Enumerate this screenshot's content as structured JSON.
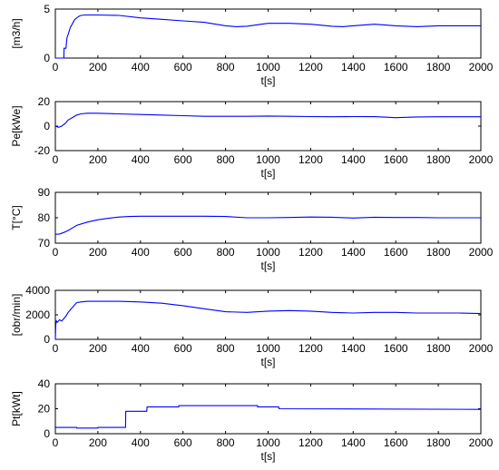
{
  "colors": {
    "series": "#0000ff",
    "axes": "#000000",
    "background": "#ffffff"
  },
  "chart_data": [
    {
      "type": "line",
      "xlabel": "t[s]",
      "ylabel": "[m3/h]",
      "xlim": [
        0,
        2000
      ],
      "ylim": [
        0,
        5
      ],
      "xticks": [
        0,
        200,
        400,
        600,
        800,
        1000,
        1200,
        1400,
        1600,
        1800,
        2000
      ],
      "yticks": [
        0,
        5
      ],
      "x": [
        0,
        40,
        41,
        50,
        55,
        60,
        70,
        80,
        90,
        100,
        110,
        120,
        140,
        160,
        200,
        300,
        400,
        500,
        600,
        700,
        800,
        850,
        900,
        1000,
        1100,
        1200,
        1300,
        1350,
        1400,
        1500,
        1600,
        1700,
        1800,
        1900,
        2000
      ],
      "y": [
        0,
        0,
        1,
        1,
        2.1,
        2.4,
        3.1,
        3.5,
        3.9,
        4.1,
        4.25,
        4.35,
        4.4,
        4.4,
        4.4,
        4.35,
        4.1,
        3.95,
        3.8,
        3.65,
        3.3,
        3.2,
        3.25,
        3.55,
        3.55,
        3.45,
        3.25,
        3.2,
        3.3,
        3.45,
        3.3,
        3.2,
        3.3,
        3.3,
        3.3
      ]
    },
    {
      "type": "line",
      "xlabel": "t[s]",
      "ylabel": "Pe[kWe]",
      "xlim": [
        0,
        2000
      ],
      "ylim": [
        -20,
        20
      ],
      "xticks": [
        0,
        200,
        400,
        600,
        800,
        1000,
        1200,
        1400,
        1600,
        1800,
        2000
      ],
      "yticks": [
        -20,
        0,
        20
      ],
      "x": [
        0,
        15,
        30,
        45,
        60,
        80,
        100,
        120,
        150,
        200,
        300,
        400,
        500,
        600,
        700,
        800,
        900,
        1000,
        1100,
        1200,
        1300,
        1400,
        1500,
        1600,
        1700,
        1800,
        1900,
        2000
      ],
      "y": [
        0,
        -1,
        0,
        2,
        5,
        7,
        9,
        10,
        10.5,
        10.5,
        10,
        9.5,
        9,
        8.5,
        8,
        8,
        8,
        8.2,
        8,
        7.8,
        7.6,
        7.8,
        7.7,
        6.9,
        7.5,
        7.6,
        7.6,
        7.6
      ]
    },
    {
      "type": "line",
      "xlabel": "t[s]",
      "ylabel": "T[°C]",
      "xlim": [
        0,
        2000
      ],
      "ylim": [
        70,
        90
      ],
      "xticks": [
        0,
        200,
        400,
        600,
        800,
        1000,
        1200,
        1400,
        1600,
        1800,
        2000
      ],
      "yticks": [
        70,
        80,
        90
      ],
      "x": [
        0,
        20,
        40,
        60,
        80,
        100,
        150,
        200,
        250,
        300,
        350,
        400,
        500,
        600,
        700,
        800,
        900,
        1000,
        1100,
        1200,
        1300,
        1400,
        1500,
        1600,
        1700,
        1800,
        1900,
        2000
      ],
      "y": [
        73.5,
        73.6,
        74.2,
        75,
        76,
        77,
        78.3,
        79.2,
        79.8,
        80.3,
        80.5,
        80.6,
        80.6,
        80.6,
        80.6,
        80.5,
        80,
        80,
        80.1,
        80.3,
        80.2,
        79.9,
        80.2,
        80.1,
        80.1,
        80,
        80,
        80
      ]
    },
    {
      "type": "line",
      "xlabel": "t[s]",
      "ylabel": "[obr/min]",
      "xlim": [
        0,
        2000
      ],
      "ylim": [
        0,
        4000
      ],
      "xticks": [
        0,
        200,
        400,
        600,
        800,
        1000,
        1200,
        1400,
        1600,
        1800,
        2000
      ],
      "yticks": [
        0,
        2000,
        4000
      ],
      "x": [
        0,
        2,
        5,
        10,
        20,
        30,
        40,
        50,
        60,
        80,
        100,
        120,
        150,
        200,
        300,
        400,
        500,
        600,
        700,
        800,
        900,
        1000,
        1100,
        1200,
        1300,
        1400,
        1500,
        1600,
        1700,
        1800,
        1900,
        2000
      ],
      "y": [
        0,
        1200,
        1500,
        1400,
        1600,
        1500,
        1700,
        1900,
        2200,
        2600,
        3000,
        3050,
        3100,
        3100,
        3100,
        3050,
        2950,
        2750,
        2500,
        2250,
        2200,
        2300,
        2350,
        2300,
        2200,
        2150,
        2200,
        2200,
        2150,
        2150,
        2150,
        2100
      ]
    },
    {
      "type": "line",
      "xlabel": "t[s]",
      "ylabel": "Pt[kWt]",
      "xlim": [
        0,
        2000
      ],
      "ylim": [
        0,
        40
      ],
      "xticks": [
        0,
        200,
        400,
        600,
        800,
        1000,
        1200,
        1400,
        1600,
        1800,
        2000
      ],
      "yticks": [
        0,
        20,
        40
      ],
      "x": [
        0,
        100,
        101,
        200,
        201,
        330,
        331,
        430,
        431,
        580,
        581,
        950,
        951,
        1050,
        1051,
        2000
      ],
      "y": [
        5,
        5,
        4.5,
        4.5,
        5,
        5,
        18,
        18,
        21.5,
        21.5,
        22.5,
        22.5,
        21.5,
        21.5,
        20,
        19.5
      ]
    }
  ]
}
